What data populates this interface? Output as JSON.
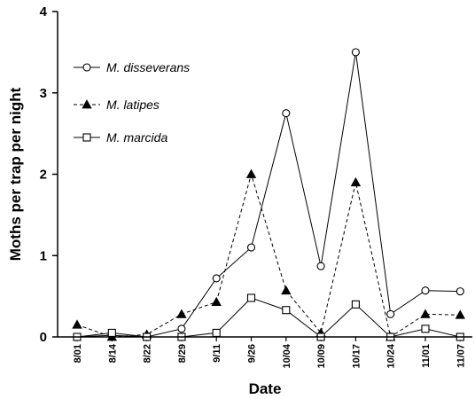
{
  "chart_data": {
    "type": "line",
    "title": "",
    "xlabel": "Date",
    "ylabel": "Moths per trap per night",
    "ylim": [
      0,
      4
    ],
    "yticks": [
      "0",
      "1",
      "2",
      "3",
      "4"
    ],
    "categories": [
      "8/01",
      "8/14",
      "8/22",
      "8/29",
      "9/11",
      "9/26",
      "10/04",
      "10/09",
      "10/17",
      "10/24",
      "11/01",
      "11/07"
    ],
    "grid": false,
    "legend_position": "top-left",
    "series": [
      {
        "name": "M. disseverans",
        "marker": "open-circle",
        "line_style": "solid",
        "values": [
          0.0,
          0.02,
          0.0,
          0.1,
          0.72,
          1.1,
          2.75,
          0.87,
          3.5,
          0.28,
          0.57,
          0.56
        ]
      },
      {
        "name": "M. latipes",
        "marker": "filled-triangle",
        "line_style": "dashed",
        "values": [
          0.15,
          0.0,
          0.03,
          0.28,
          0.43,
          2.0,
          0.57,
          0.05,
          1.9,
          0.0,
          0.28,
          0.27
        ]
      },
      {
        "name": "M. marcida",
        "marker": "open-square",
        "line_style": "solid",
        "values": [
          0.0,
          0.05,
          0.0,
          0.0,
          0.05,
          0.48,
          0.33,
          0.0,
          0.4,
          0.0,
          0.1,
          0.0
        ]
      }
    ]
  }
}
